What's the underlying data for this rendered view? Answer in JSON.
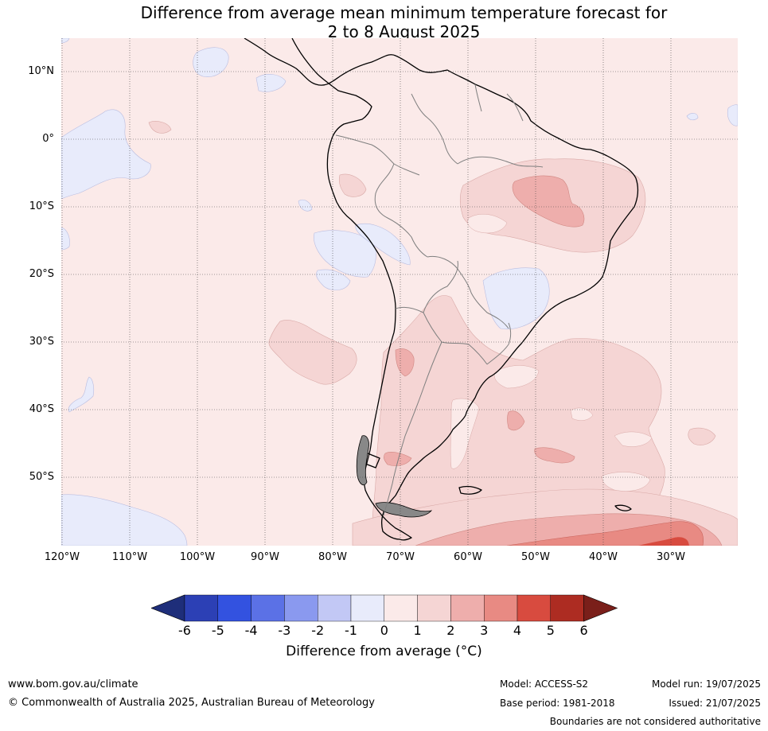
{
  "title": {
    "line1": "Difference from average mean minimum temperature forecast for",
    "line2": "2 to 8 August 2025"
  },
  "map": {
    "region": "South America",
    "lat_labels": [
      "10°N",
      "0°",
      "10°S",
      "20°S",
      "30°S",
      "40°S",
      "50°S"
    ],
    "lon_labels": [
      "120°W",
      "110°W",
      "100°W",
      "90°W",
      "80°W",
      "70°W",
      "60°W",
      "50°W",
      "40°W",
      "30°W"
    ],
    "colors": {
      "ocean_base": "#fbeae9",
      "neg1": "#e8ebfb",
      "pos1": "#f5d5d4",
      "pos2": "#eeaeac",
      "pos3": "#e88a83",
      "pos4": "#d84b3f",
      "coast": "#000000",
      "borders": "#808080",
      "grid": "#555555"
    }
  },
  "colorbar": {
    "ticks": [
      "-6",
      "-5",
      "-4",
      "-3",
      "-2",
      "-1",
      "0",
      "1",
      "2",
      "3",
      "4",
      "5",
      "6"
    ],
    "colors": [
      "#1e2e7a",
      "#2c40b5",
      "#3352e0",
      "#5b71e6",
      "#8a99ef",
      "#c2c8f5",
      "#e8ebfb",
      "#fbeae9",
      "#f5d5d4",
      "#eeaeac",
      "#e88a83",
      "#d84b3f",
      "#ad2c22",
      "#7a1f1a"
    ],
    "label": "Difference from average (°C)"
  },
  "footer": {
    "website": "www.bom.gov.au/climate",
    "copyright": "© Commonwealth of Australia 2025, Australian Bureau of Meteorology",
    "model": "Model: ACCESS-S2",
    "base_period": "Base period: 1981-2018",
    "model_run": "Model run: 19/07/2025",
    "issued": "Issued: 21/07/2025",
    "disclaimer": "Boundaries are not considered authoritative"
  }
}
